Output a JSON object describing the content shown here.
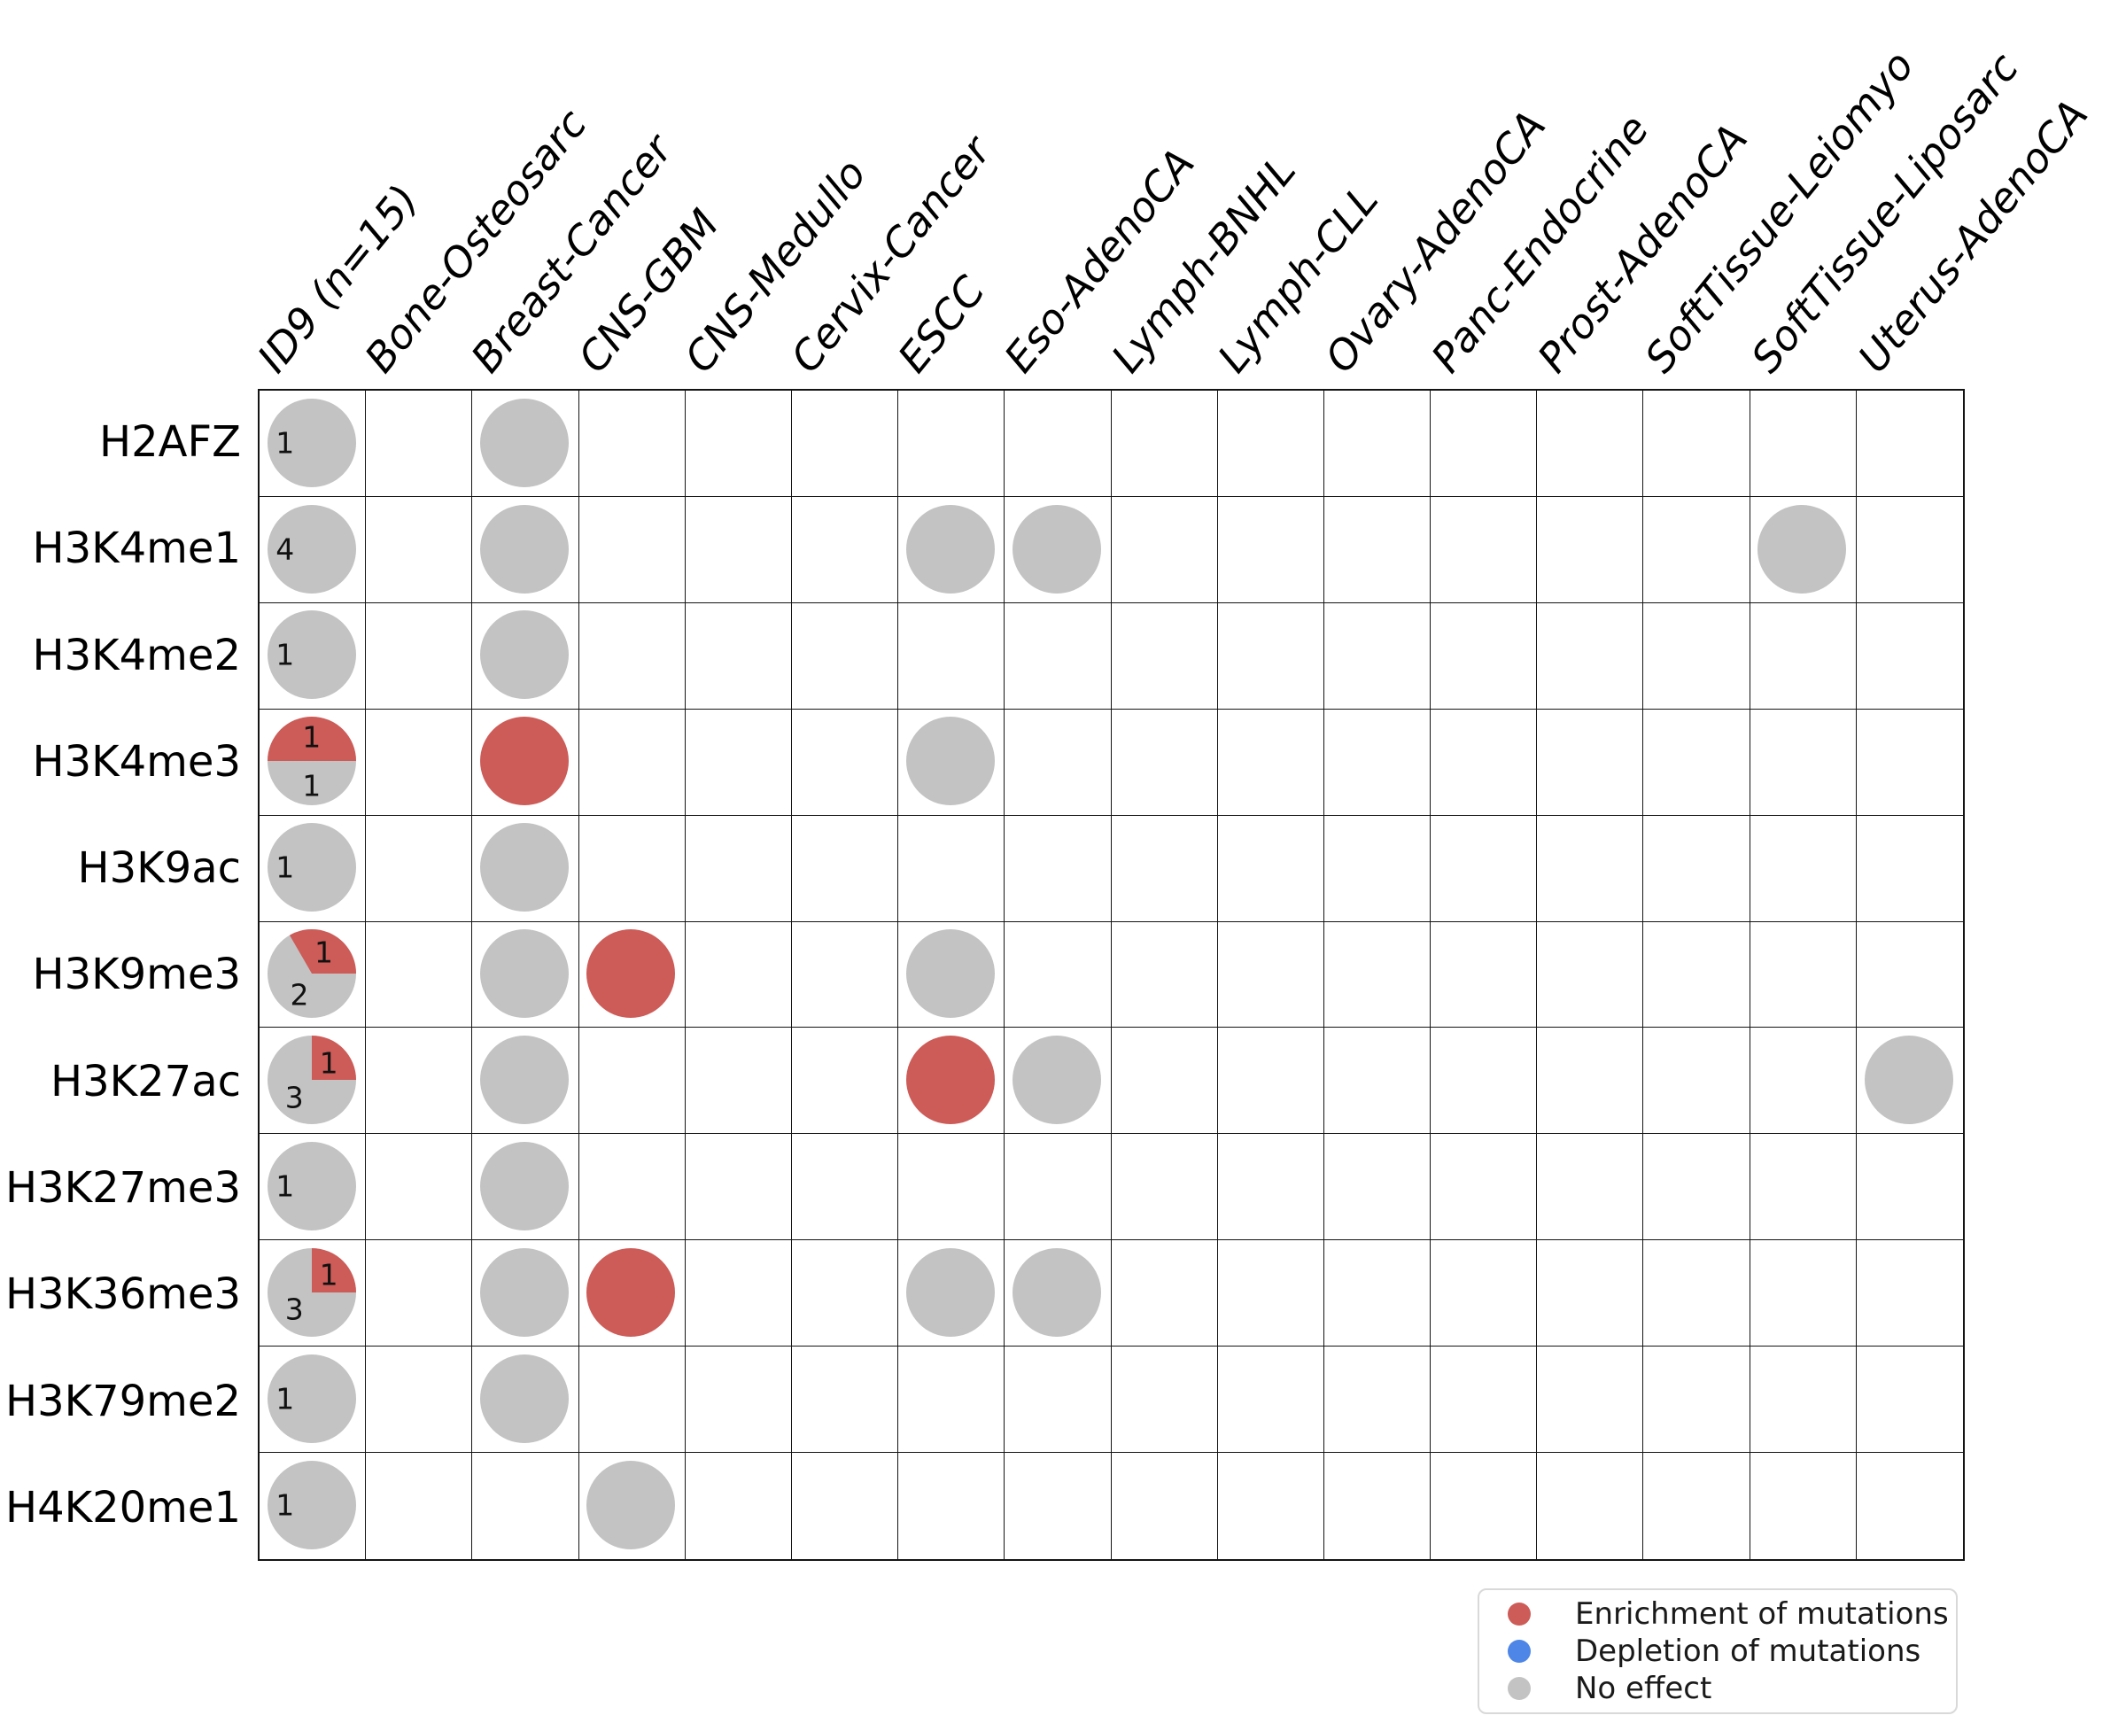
{
  "figure": {
    "colors": {
      "enrichment": "#cd5c58",
      "depletion": "#4d86e6",
      "no_effect": "#c3c3c3",
      "grid_line": "#141414"
    },
    "chart_data": {
      "type": "heatmap",
      "description": "Matrix of histone marks vs cancer cohorts; circles are pies showing enrichment (red), depletion (blue) or no effect (gray) of mutations; numbers in the ID9 column count cohorts per effect",
      "columns": [
        "ID9 (n=15)",
        "Bone-Osteosarc",
        "Breast-Cancer",
        "CNS-GBM",
        "CNS-Medullo",
        "Cervix-Cancer",
        "ESCC",
        "Eso-AdenoCA",
        "Lymph-BNHL",
        "Lymph-CLL",
        "Ovary-AdenoCA",
        "Panc-Endocrine",
        "Prost-AdenoCA",
        "SoftTissue-Leiomyo",
        "SoftTissue-Liposarc",
        "Uterus-AdenoCA"
      ],
      "rows": [
        "H2AFZ",
        "H3K4me1",
        "H3K4me2",
        "H3K4me3",
        "H3K9ac",
        "H3K9me3",
        "H3K27ac",
        "H3K27me3",
        "H3K36me3",
        "H3K79me2",
        "H4K20me1"
      ],
      "cells": [
        {
          "row": "H2AFZ",
          "col": "ID9 (n=15)",
          "segments": [
            {
              "effect": "no_effect",
              "fraction": 1,
              "label": "1"
            }
          ]
        },
        {
          "row": "H2AFZ",
          "col": "Breast-Cancer",
          "segments": [
            {
              "effect": "no_effect",
              "fraction": 1
            }
          ]
        },
        {
          "row": "H3K4me1",
          "col": "ID9 (n=15)",
          "segments": [
            {
              "effect": "no_effect",
              "fraction": 1,
              "label": "4"
            }
          ]
        },
        {
          "row": "H3K4me1",
          "col": "Breast-Cancer",
          "segments": [
            {
              "effect": "no_effect",
              "fraction": 1
            }
          ]
        },
        {
          "row": "H3K4me1",
          "col": "ESCC",
          "segments": [
            {
              "effect": "no_effect",
              "fraction": 1
            }
          ]
        },
        {
          "row": "H3K4me1",
          "col": "Eso-AdenoCA",
          "segments": [
            {
              "effect": "no_effect",
              "fraction": 1
            }
          ]
        },
        {
          "row": "H3K4me1",
          "col": "SoftTissue-Liposarc",
          "segments": [
            {
              "effect": "no_effect",
              "fraction": 1
            }
          ]
        },
        {
          "row": "H3K4me2",
          "col": "ID9 (n=15)",
          "segments": [
            {
              "effect": "no_effect",
              "fraction": 1,
              "label": "1"
            }
          ]
        },
        {
          "row": "H3K4me2",
          "col": "Breast-Cancer",
          "segments": [
            {
              "effect": "no_effect",
              "fraction": 1
            }
          ]
        },
        {
          "row": "H3K4me3",
          "col": "ID9 (n=15)",
          "segments": [
            {
              "effect": "enrichment",
              "fraction": 0.5,
              "label": "1"
            },
            {
              "effect": "no_effect",
              "fraction": 0.5,
              "label": "1"
            }
          ]
        },
        {
          "row": "H3K4me3",
          "col": "Breast-Cancer",
          "segments": [
            {
              "effect": "enrichment",
              "fraction": 1
            }
          ]
        },
        {
          "row": "H3K4me3",
          "col": "ESCC",
          "segments": [
            {
              "effect": "no_effect",
              "fraction": 1
            }
          ]
        },
        {
          "row": "H3K9ac",
          "col": "ID9 (n=15)",
          "segments": [
            {
              "effect": "no_effect",
              "fraction": 1,
              "label": "1"
            }
          ]
        },
        {
          "row": "H3K9ac",
          "col": "Breast-Cancer",
          "segments": [
            {
              "effect": "no_effect",
              "fraction": 1
            }
          ]
        },
        {
          "row": "H3K9me3",
          "col": "ID9 (n=15)",
          "segments": [
            {
              "effect": "enrichment",
              "fraction": 0.3333,
              "label": "1"
            },
            {
              "effect": "no_effect",
              "fraction": 0.6667,
              "label": "2"
            }
          ]
        },
        {
          "row": "H3K9me3",
          "col": "Breast-Cancer",
          "segments": [
            {
              "effect": "no_effect",
              "fraction": 1
            }
          ]
        },
        {
          "row": "H3K9me3",
          "col": "CNS-GBM",
          "segments": [
            {
              "effect": "enrichment",
              "fraction": 1
            }
          ]
        },
        {
          "row": "H3K9me3",
          "col": "ESCC",
          "segments": [
            {
              "effect": "no_effect",
              "fraction": 1
            }
          ]
        },
        {
          "row": "H3K27ac",
          "col": "ID9 (n=15)",
          "segments": [
            {
              "effect": "enrichment",
              "fraction": 0.25,
              "label": "1"
            },
            {
              "effect": "no_effect",
              "fraction": 0.75,
              "label": "3"
            }
          ]
        },
        {
          "row": "H3K27ac",
          "col": "Breast-Cancer",
          "segments": [
            {
              "effect": "no_effect",
              "fraction": 1
            }
          ]
        },
        {
          "row": "H3K27ac",
          "col": "ESCC",
          "segments": [
            {
              "effect": "enrichment",
              "fraction": 1
            }
          ]
        },
        {
          "row": "H3K27ac",
          "col": "Eso-AdenoCA",
          "segments": [
            {
              "effect": "no_effect",
              "fraction": 1
            }
          ]
        },
        {
          "row": "H3K27ac",
          "col": "Uterus-AdenoCA",
          "segments": [
            {
              "effect": "no_effect",
              "fraction": 1
            }
          ]
        },
        {
          "row": "H3K27me3",
          "col": "ID9 (n=15)",
          "segments": [
            {
              "effect": "no_effect",
              "fraction": 1,
              "label": "1"
            }
          ]
        },
        {
          "row": "H3K27me3",
          "col": "Breast-Cancer",
          "segments": [
            {
              "effect": "no_effect",
              "fraction": 1
            }
          ]
        },
        {
          "row": "H3K36me3",
          "col": "ID9 (n=15)",
          "segments": [
            {
              "effect": "enrichment",
              "fraction": 0.25,
              "label": "1"
            },
            {
              "effect": "no_effect",
              "fraction": 0.75,
              "label": "3"
            }
          ]
        },
        {
          "row": "H3K36me3",
          "col": "Breast-Cancer",
          "segments": [
            {
              "effect": "no_effect",
              "fraction": 1
            }
          ]
        },
        {
          "row": "H3K36me3",
          "col": "CNS-GBM",
          "segments": [
            {
              "effect": "enrichment",
              "fraction": 1
            }
          ]
        },
        {
          "row": "H3K36me3",
          "col": "ESCC",
          "segments": [
            {
              "effect": "no_effect",
              "fraction": 1
            }
          ]
        },
        {
          "row": "H3K36me3",
          "col": "Eso-AdenoCA",
          "segments": [
            {
              "effect": "no_effect",
              "fraction": 1
            }
          ]
        },
        {
          "row": "H3K79me2",
          "col": "ID9 (n=15)",
          "segments": [
            {
              "effect": "no_effect",
              "fraction": 1,
              "label": "1"
            }
          ]
        },
        {
          "row": "H3K79me2",
          "col": "Breast-Cancer",
          "segments": [
            {
              "effect": "no_effect",
              "fraction": 1
            }
          ]
        },
        {
          "row": "H4K20me1",
          "col": "ID9 (n=15)",
          "segments": [
            {
              "effect": "no_effect",
              "fraction": 1,
              "label": "1"
            }
          ]
        },
        {
          "row": "H4K20me1",
          "col": "CNS-GBM",
          "segments": [
            {
              "effect": "no_effect",
              "fraction": 1
            }
          ]
        }
      ],
      "legend": {
        "items": [
          {
            "label": "Enrichment of mutations",
            "effect": "enrichment"
          },
          {
            "label": "Depletion of mutations",
            "effect": "depletion"
          },
          {
            "label": "No effect",
            "effect": "no_effect"
          }
        ],
        "position": "bottom-right"
      }
    }
  }
}
